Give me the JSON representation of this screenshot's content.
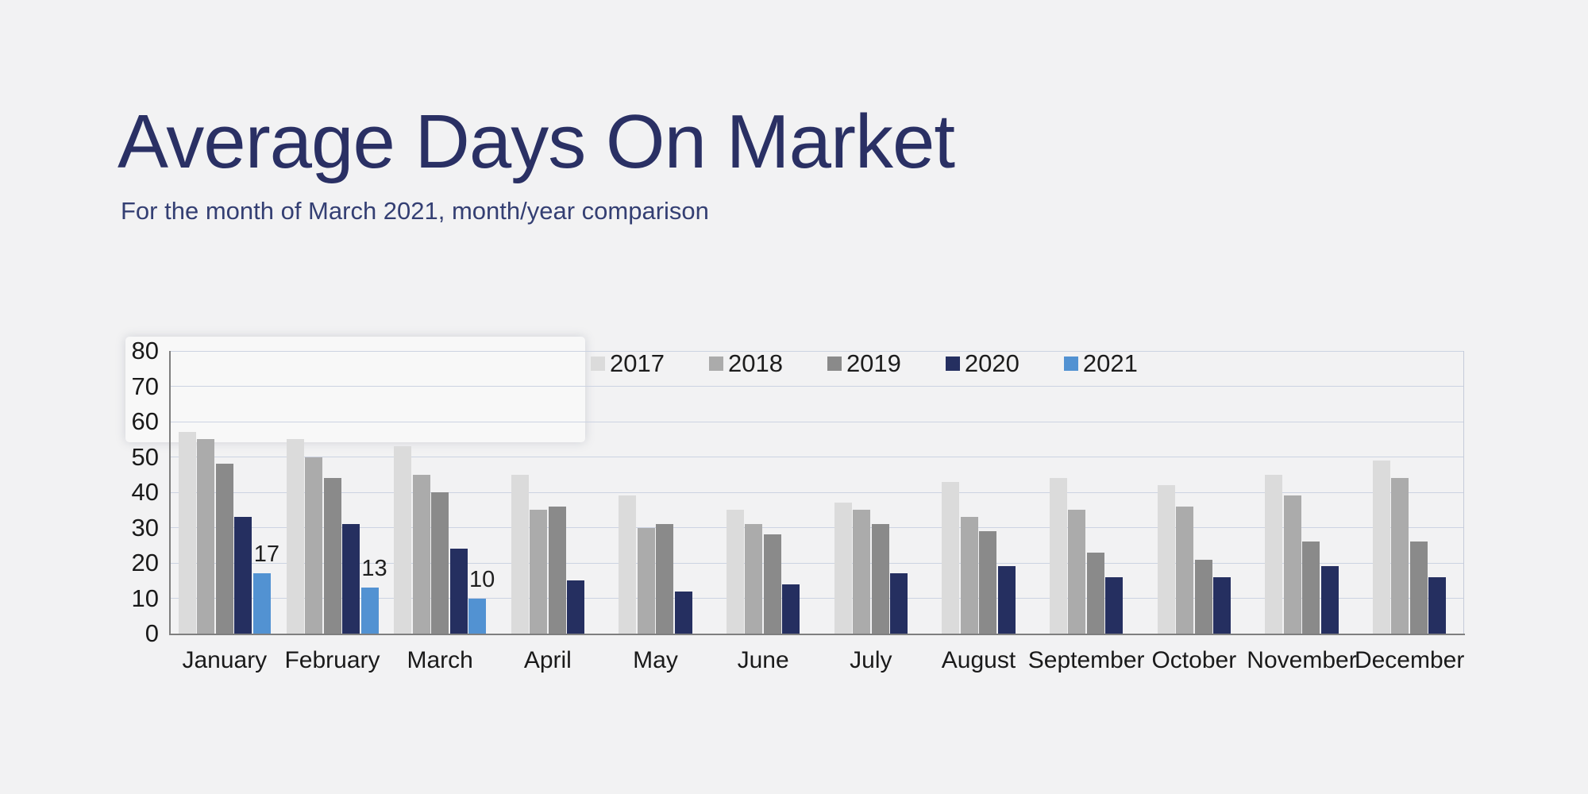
{
  "page": {
    "background": "#f2f2f3"
  },
  "header": {
    "title": "Average Days On Market",
    "subtitle": "For the month of March 2021, month/year comparison"
  },
  "chart_data": {
    "type": "bar",
    "title": "Average Days On Market",
    "subtitle": "For the month of March 2021, month/year comparison",
    "categories": [
      "January",
      "February",
      "March",
      "April",
      "May",
      "June",
      "July",
      "August",
      "September",
      "October",
      "November",
      "December"
    ],
    "series": [
      {
        "name": "2017",
        "color": "#dbdbdb",
        "values": [
          57,
          55,
          53,
          45,
          39,
          35,
          37,
          43,
          44,
          42,
          45,
          49
        ]
      },
      {
        "name": "2018",
        "color": "#ababab",
        "values": [
          55,
          50,
          45,
          35,
          30,
          31,
          35,
          33,
          35,
          36,
          39,
          44
        ]
      },
      {
        "name": "2019",
        "color": "#8a8a8a",
        "values": [
          48,
          44,
          40,
          36,
          31,
          28,
          31,
          29,
          23,
          21,
          26,
          26
        ]
      },
      {
        "name": "2020",
        "color": "#252f60",
        "values": [
          33,
          31,
          24,
          15,
          12,
          14,
          17,
          19,
          16,
          16,
          19,
          16
        ]
      },
      {
        "name": "2021",
        "color": "#5292d2",
        "values": [
          17,
          13,
          10,
          null,
          null,
          null,
          null,
          null,
          null,
          null,
          null,
          null
        ],
        "data_labels": true
      }
    ],
    "data_label_values": [
      17,
      13,
      10
    ],
    "ylim": [
      0,
      80
    ],
    "yticks": [
      0,
      10,
      20,
      30,
      40,
      50,
      60,
      70,
      80
    ],
    "grid": "horizontal",
    "legend_position": "top",
    "legend_labels": [
      "2017",
      "2018",
      "2019",
      "2020",
      "2021"
    ],
    "colors": {
      "gridline": "#ccd3e2",
      "axis": "#7f7f7f",
      "plot_right_border": "#c5cbd9",
      "tick_text": "#1a1a1a",
      "title": "#2a3064",
      "subtitle": "#343f73"
    }
  }
}
